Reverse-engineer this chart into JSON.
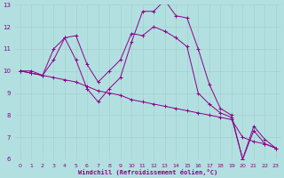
{
  "xlabel": "Windchill (Refroidissement éolien,°C)",
  "background_color": "#b2e0e0",
  "grid_color": "#c8dede",
  "line_color": "#8b008b",
  "xlim": [
    -0.5,
    23.5
  ],
  "ylim": [
    6,
    13
  ],
  "xticks": [
    0,
    1,
    2,
    3,
    4,
    5,
    6,
    7,
    8,
    9,
    10,
    11,
    12,
    13,
    14,
    15,
    16,
    17,
    18,
    19,
    20,
    21,
    22,
    23
  ],
  "yticks": [
    6,
    7,
    8,
    9,
    10,
    11,
    12,
    13
  ],
  "series1_x": [
    0,
    1,
    2,
    3,
    4,
    5,
    6,
    7,
    8,
    9,
    10,
    11,
    12,
    13,
    14,
    15,
    16,
    17,
    18,
    19,
    20,
    21,
    22,
    23
  ],
  "series1_y": [
    10,
    10,
    9.8,
    11,
    11.5,
    10.5,
    9.2,
    8.6,
    9.2,
    9.7,
    11.3,
    12.7,
    12.7,
    13.2,
    12.5,
    12.4,
    11.0,
    9.4,
    8.3,
    8.0,
    6.0,
    7.3,
    6.7,
    6.5
  ],
  "series2_x": [
    0,
    1,
    2,
    3,
    4,
    5,
    6,
    7,
    8,
    9,
    10,
    11,
    12,
    13,
    14,
    15,
    16,
    17,
    18,
    19,
    20,
    21,
    22,
    23
  ],
  "series2_y": [
    10,
    9.9,
    9.8,
    9.7,
    9.6,
    9.5,
    9.3,
    9.1,
    9.0,
    8.9,
    8.7,
    8.6,
    8.5,
    8.4,
    8.3,
    8.2,
    8.1,
    8.0,
    7.9,
    7.8,
    7.0,
    6.8,
    6.7,
    6.5
  ],
  "series3_x": [
    0,
    1,
    2,
    3,
    4,
    5,
    6,
    7,
    8,
    9,
    10,
    11,
    12,
    13,
    14,
    15,
    16,
    17,
    18,
    19,
    20,
    21,
    22,
    23
  ],
  "series3_y": [
    10,
    9.9,
    9.8,
    10.5,
    11.5,
    11.6,
    10.3,
    9.5,
    10.0,
    10.5,
    11.7,
    11.6,
    12.0,
    11.8,
    11.5,
    11.1,
    9.0,
    8.5,
    8.1,
    7.9,
    6.0,
    7.5,
    6.9,
    6.5
  ]
}
